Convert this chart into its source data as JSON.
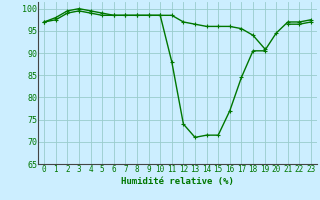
{
  "x": [
    0,
    1,
    2,
    3,
    4,
    5,
    6,
    7,
    8,
    9,
    10,
    11,
    12,
    13,
    14,
    15,
    16,
    17,
    18,
    19,
    20,
    21,
    22,
    23
  ],
  "line1": [
    97,
    97.5,
    99,
    99.5,
    99,
    98.5,
    98.5,
    98.5,
    98.5,
    98.5,
    98.5,
    88,
    74,
    71,
    71.5,
    71.5,
    77,
    84.5,
    90.5,
    90.5,
    94.5,
    97,
    97,
    97.5
  ],
  "line2": [
    97,
    98,
    99.5,
    100,
    99.5,
    99,
    98.5,
    98.5,
    98.5,
    98.5,
    98.5,
    98.5,
    97,
    96.5,
    96,
    96,
    96,
    95.5,
    94,
    91,
    null,
    96.5,
    96.5,
    97
  ],
  "line_color": "#007700",
  "bg_color": "#cceeff",
  "grid_color": "#99cccc",
  "xlabel": "Humidité relative (%)",
  "xlim": [
    -0.5,
    23.5
  ],
  "ylim": [
    65,
    101.5
  ],
  "yticks": [
    65,
    70,
    75,
    80,
    85,
    90,
    95,
    100
  ],
  "xticks": [
    0,
    1,
    2,
    3,
    4,
    5,
    6,
    7,
    8,
    9,
    10,
    11,
    12,
    13,
    14,
    15,
    16,
    17,
    18,
    19,
    20,
    21,
    22,
    23
  ],
  "xlabel_fontsize": 6.5,
  "tick_fontsize": 5.5,
  "ytick_fontsize": 6.0,
  "linewidth": 1.0,
  "markersize": 3.5
}
